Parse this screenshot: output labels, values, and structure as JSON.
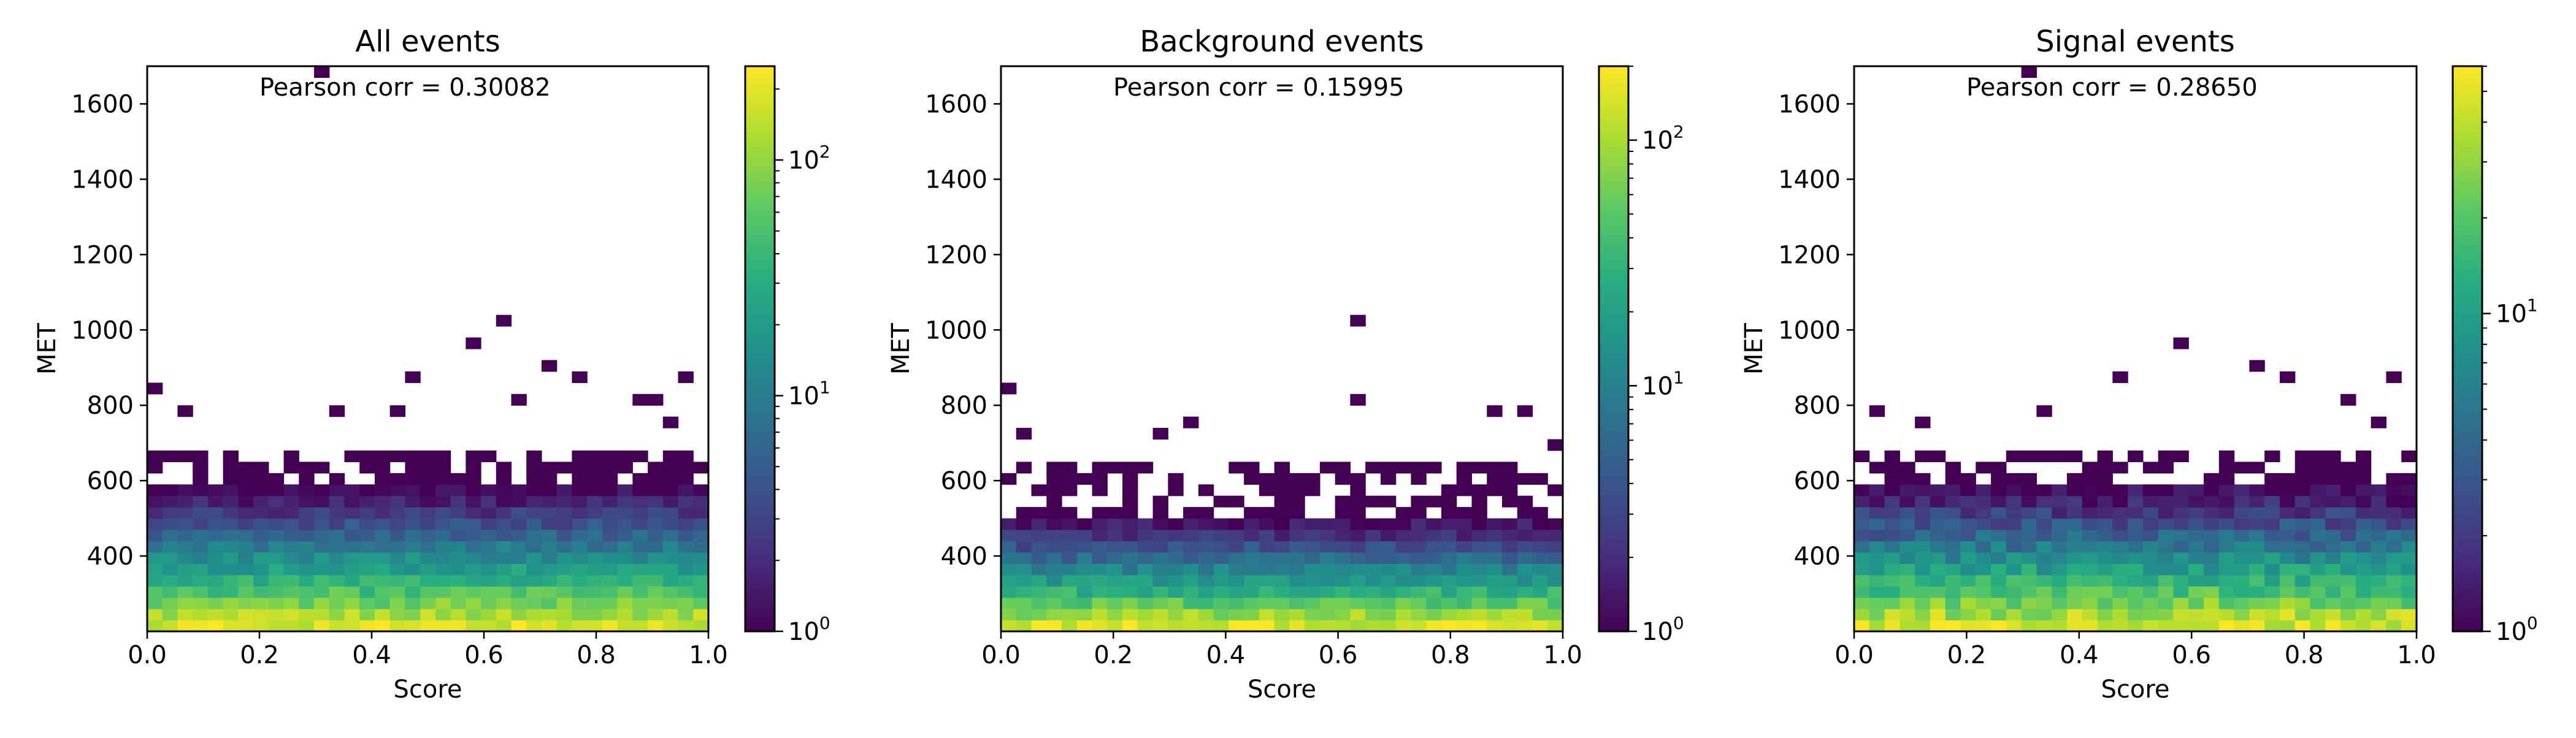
{
  "chart_data": [
    {
      "type": "heatmap",
      "title": "All events",
      "xlabel": "Score",
      "ylabel": "MET",
      "xlim": [
        0.0,
        1.0
      ],
      "ylim": [
        200,
        1700
      ],
      "xticks": [
        "0.0",
        "0.2",
        "0.4",
        "0.6",
        "0.8",
        "1.0"
      ],
      "yticks": [
        "400",
        "600",
        "800",
        "1000",
        "1200",
        "1400",
        "1600"
      ],
      "annotation": "Pearson corr = 0.30082",
      "colorbar": {
        "scale": "log",
        "min": 1,
        "max": 250,
        "ticks": [
          "10^0",
          "10^1",
          "10^2"
        ]
      },
      "profile": {
        "dense_top_met": 580,
        "sparse_top_met": 690,
        "peak_count": 250
      },
      "outliers": [
        [
          0.015,
          830
        ],
        [
          0.065,
          795
        ],
        [
          0.335,
          795
        ],
        [
          0.445,
          795
        ],
        [
          0.475,
          870
        ],
        [
          0.575,
          950
        ],
        [
          0.625,
          1025
        ],
        [
          0.665,
          800
        ],
        [
          0.705,
          910
        ],
        [
          0.775,
          870
        ],
        [
          0.875,
          800
        ],
        [
          0.905,
          800
        ],
        [
          0.935,
          760
        ],
        [
          0.965,
          870
        ],
        [
          0.315,
          1670
        ]
      ]
    },
    {
      "type": "heatmap",
      "title": "Background events",
      "xlabel": "Score",
      "ylabel": "MET",
      "xlim": [
        0.0,
        1.0
      ],
      "ylim": [
        200,
        1700
      ],
      "xticks": [
        "0.0",
        "0.2",
        "0.4",
        "0.6",
        "0.8",
        "1.0"
      ],
      "yticks": [
        "400",
        "600",
        "800",
        "1000",
        "1200",
        "1400",
        "1600"
      ],
      "annotation": "Pearson corr = 0.15995",
      "colorbar": {
        "scale": "log",
        "min": 1,
        "max": 200,
        "ticks": [
          "10^0",
          "10^1",
          "10^2"
        ]
      },
      "profile": {
        "dense_top_met": 500,
        "sparse_top_met": 650,
        "peak_count": 200
      },
      "outliers": [
        [
          0.015,
          830
        ],
        [
          0.325,
          760
        ],
        [
          0.625,
          1025
        ],
        [
          0.625,
          800
        ],
        [
          0.885,
          795
        ],
        [
          0.935,
          795
        ],
        [
          0.985,
          690
        ],
        [
          0.035,
          720
        ],
        [
          0.275,
          720
        ]
      ]
    },
    {
      "type": "heatmap",
      "title": "Signal events",
      "xlabel": "Score",
      "ylabel": "MET",
      "xlim": [
        0.0,
        1.0
      ],
      "ylim": [
        200,
        1700
      ],
      "xticks": [
        "0.0",
        "0.2",
        "0.4",
        "0.6",
        "0.8",
        "1.0"
      ],
      "yticks": [
        "400",
        "600",
        "800",
        "1000",
        "1200",
        "1400",
        "1600"
      ],
      "annotation": "Pearson corr = 0.28650",
      "colorbar": {
        "scale": "log",
        "min": 1,
        "max": 60,
        "ticks": [
          "10^0",
          "10^1"
        ]
      },
      "profile": {
        "dense_top_met": 580,
        "sparse_top_met": 690,
        "peak_count": 60
      },
      "outliers": [
        [
          0.045,
          795
        ],
        [
          0.135,
          760
        ],
        [
          0.335,
          795
        ],
        [
          0.475,
          870
        ],
        [
          0.575,
          950
        ],
        [
          0.705,
          910
        ],
        [
          0.775,
          870
        ],
        [
          0.875,
          800
        ],
        [
          0.965,
          870
        ],
        [
          0.315,
          1670
        ],
        [
          0.935,
          760
        ]
      ]
    }
  ]
}
